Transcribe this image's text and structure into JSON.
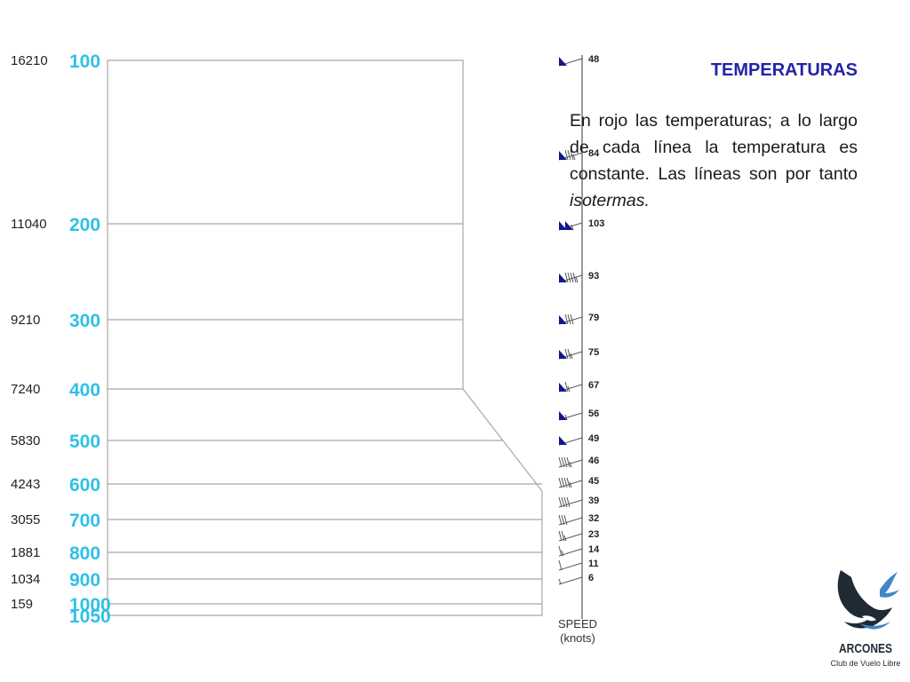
{
  "panel": {
    "title": "TEMPERATURAS",
    "body_main": "En rojo las temperaturas; a lo largo de cada línea la temperatura es constante. Las líneas son por tanto ",
    "body_em": "isotermas."
  },
  "diagram": {
    "levels": [
      {
        "pressure": "100",
        "altitude": "16210",
        "p": 100
      },
      {
        "pressure": "200",
        "altitude": "11040",
        "p": 200
      },
      {
        "pressure": "300",
        "altitude": "9210",
        "p": 300
      },
      {
        "pressure": "400",
        "altitude": "7240",
        "p": 400
      },
      {
        "pressure": "500",
        "altitude": "5830",
        "p": 500
      },
      {
        "pressure": "600",
        "altitude": "4243",
        "p": 600
      },
      {
        "pressure": "700",
        "altitude": "3055",
        "p": 700
      },
      {
        "pressure": "800",
        "altitude": "1881",
        "p": 800
      },
      {
        "pressure": "900",
        "altitude": "1034",
        "p": 900
      },
      {
        "pressure": "1000",
        "altitude": "159",
        "p": 1000
      },
      {
        "pressure": "1050",
        "altitude": "",
        "p": 1050
      }
    ],
    "wind": {
      "title_line1": "SPEED",
      "title_line2": "(knots)",
      "speeds": [
        {
          "label": "48",
          "knots": 48
        },
        {
          "label": "84",
          "knots": 84
        },
        {
          "label": "103",
          "knots": 103
        },
        {
          "label": "93",
          "knots": 93
        },
        {
          "label": "79",
          "knots": 79
        },
        {
          "label": "75",
          "knots": 75
        },
        {
          "label": "67",
          "knots": 67
        },
        {
          "label": "56",
          "knots": 56
        },
        {
          "label": "49",
          "knots": 49
        },
        {
          "label": "46",
          "knots": 46
        },
        {
          "label": "45",
          "knots": 45
        },
        {
          "label": "39",
          "knots": 39
        },
        {
          "label": "32",
          "knots": 32
        },
        {
          "label": "23",
          "knots": 23
        },
        {
          "label": "14",
          "knots": 14
        },
        {
          "label": "11",
          "knots": 11
        },
        {
          "label": "6",
          "knots": 6
        }
      ]
    }
  },
  "logo": {
    "name": "ARCONES",
    "subtitle": "Club de Vuelo Libre",
    "primary_color": "#1f2a35",
    "accent_color": "#3f86c8"
  },
  "colors": {
    "pressure_labels": "#2fc0e8",
    "title": "#2323a8",
    "flags": "#12158c",
    "grid": "#a8a8a8"
  }
}
